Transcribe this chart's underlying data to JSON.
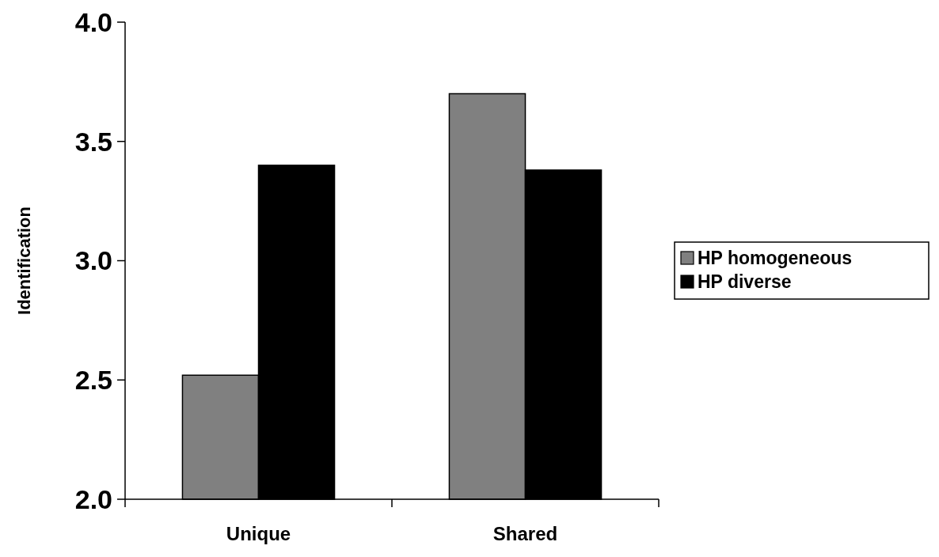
{
  "chart_data": {
    "type": "bar",
    "ylabel": "Identification",
    "categories": [
      "Unique",
      "Shared"
    ],
    "series": [
      {
        "name": "HP homogeneous",
        "color": "#808080",
        "values": [
          2.52,
          3.7
        ]
      },
      {
        "name": "HP diverse",
        "color": "#000000",
        "values": [
          3.4,
          3.38
        ]
      }
    ],
    "ylim": [
      2.0,
      4.0
    ],
    "yticks": [
      {
        "value": 2,
        "label": "2.0"
      },
      {
        "value": 2.5,
        "label": "2.5"
      },
      {
        "value": 3,
        "label": "3.0"
      },
      {
        "value": 3.5,
        "label": "3.5"
      },
      {
        "value": 4,
        "label": "4.0"
      }
    ],
    "grid": false,
    "legend": "right"
  }
}
